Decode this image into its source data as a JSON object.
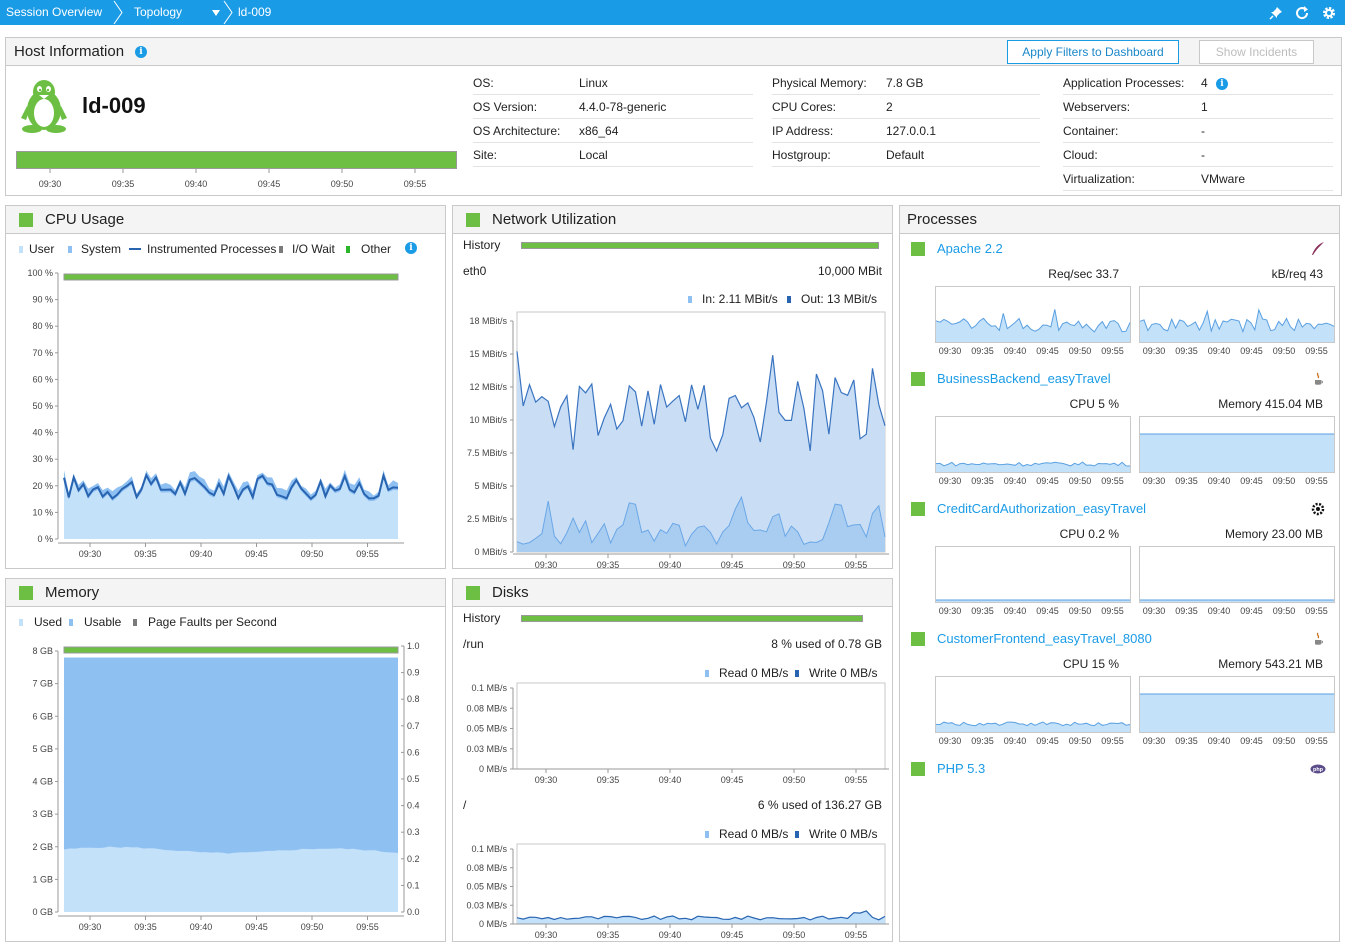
{
  "breadcrumb": {
    "items": [
      "Session Overview",
      "Topology",
      "ld-009"
    ]
  },
  "host_info": {
    "title": "Host Information",
    "apply_filters_button": "Apply Filters to Dashboard",
    "show_incidents_button": "Show Incidents",
    "host_name": "ld-009",
    "availability_times": [
      "09:30",
      "09:35",
      "09:40",
      "09:45",
      "09:50",
      "09:55"
    ],
    "col1": [
      {
        "k": "OS:",
        "v": "Linux"
      },
      {
        "k": "OS Version:",
        "v": "4.4.0-78-generic"
      },
      {
        "k": "OS Architecture:",
        "v": "x86_64"
      },
      {
        "k": "Site:",
        "v": "Local"
      }
    ],
    "col2": [
      {
        "k": "Physical Memory:",
        "v": "7.8 GB"
      },
      {
        "k": "CPU Cores:",
        "v": "2"
      },
      {
        "k": "IP Address:",
        "v": "127.0.0.1"
      },
      {
        "k": "Hostgroup:",
        "v": "Default"
      }
    ],
    "col3": [
      {
        "k": "Application Processes:",
        "v": "4"
      },
      {
        "k": "Webservers:",
        "v": "1"
      },
      {
        "k": "Container:",
        "v": "-"
      },
      {
        "k": "Cloud:",
        "v": "-"
      },
      {
        "k": "Virtualization:",
        "v": "VMware"
      }
    ]
  },
  "cpu": {
    "title": "CPU Usage",
    "legend": [
      "User",
      "System",
      "Instrumented Processes",
      "I/O Wait",
      "Other"
    ],
    "y_ticks": [
      "100 %",
      "90 %",
      "80 %",
      "70 %",
      "60 %",
      "50 %",
      "40 %",
      "30 %",
      "20 %",
      "10 %",
      "0 %"
    ],
    "x_ticks": [
      "09:30",
      "09:35",
      "09:40",
      "09:45",
      "09:50",
      "09:55"
    ]
  },
  "network": {
    "title": "Network Utilization",
    "history_label": "History",
    "interface": "eth0",
    "speed": "10,000 MBit",
    "in_label": "In: 2.11 MBit/s",
    "out_label": "Out: 13 MBit/s",
    "y_ticks": [
      "18 MBit/s",
      "15 MBit/s",
      "12 MBit/s",
      "10 MBit/s",
      "7.5 MBit/s",
      "5 MBit/s",
      "2.5 MBit/s",
      "0 MBit/s"
    ],
    "x_ticks": [
      "09:30",
      "09:35",
      "09:40",
      "09:45",
      "09:50",
      "09:55"
    ]
  },
  "memory": {
    "title": "Memory",
    "legend": [
      "Used",
      "Usable",
      "Page Faults per Second"
    ],
    "y_ticks": [
      "8 GB",
      "7 GB",
      "6 GB",
      "5 GB",
      "4 GB",
      "3 GB",
      "2 GB",
      "1 GB",
      "0 GB"
    ],
    "y2_ticks": [
      "1.0",
      "0.9",
      "0.8",
      "0.7",
      "0.6",
      "0.5",
      "0.4",
      "0.3",
      "0.2",
      "0.1",
      "0.0"
    ],
    "x_ticks": [
      "09:30",
      "09:35",
      "09:40",
      "09:45",
      "09:50",
      "09:55"
    ]
  },
  "disks": {
    "title": "Disks",
    "history_label": "History",
    "x_ticks": [
      "09:30",
      "09:35",
      "09:40",
      "09:45",
      "09:50",
      "09:55"
    ],
    "items": [
      {
        "name": "/run",
        "usage": "8 % used of 0.78 GB",
        "read": "Read 0 MB/s",
        "write": "Write 0 MB/s",
        "y_ticks": [
          "0.1 MB/s",
          "0.08 MB/s",
          "0.05 MB/s",
          "0.03 MB/s",
          "0 MB/s"
        ]
      },
      {
        "name": "/",
        "usage": "6 % used of 136.27 GB",
        "read": "Read 0 MB/s",
        "write": "Write 0 MB/s",
        "y_ticks": [
          "0.1 MB/s",
          "0.08 MB/s",
          "0.05 MB/s",
          "0.03 MB/s",
          "0 MB/s"
        ]
      }
    ]
  },
  "processes": {
    "title": "Processes",
    "x_ticks": [
      "09:30",
      "09:35",
      "09:40",
      "09:45",
      "09:50",
      "09:55"
    ],
    "items": [
      {
        "name": "Apache 2.2",
        "icon": "apache-feather-icon",
        "m1": "Req/sec 33.7",
        "m2": "kB/req 43"
      },
      {
        "name": "BusinessBackend_easyTravel",
        "icon": "java-icon",
        "m1": "CPU 5 %",
        "m2": "Memory 415.04 MB"
      },
      {
        "name": "CreditCardAuthorization_easyTravel",
        "icon": "process-gear-icon",
        "m1": "CPU 0.2 %",
        "m2": "Memory 23.00 MB"
      },
      {
        "name": "CustomerFrontend_easyTravel_8080",
        "icon": "java-icon",
        "m1": "CPU 15 %",
        "m2": "Memory 543.21 MB"
      },
      {
        "name": "PHP 5.3",
        "icon": "php-icon",
        "m1": "",
        "m2": ""
      }
    ]
  },
  "colors": {
    "accent": "#1a9be6",
    "availability": "#6cbf43",
    "cpu_area": "#b9dcf6",
    "line": "#2864b0",
    "net_area": "#bcd6f3",
    "mem_usable": "#8fc0f2",
    "mem_used": "#c4e1fa"
  }
}
